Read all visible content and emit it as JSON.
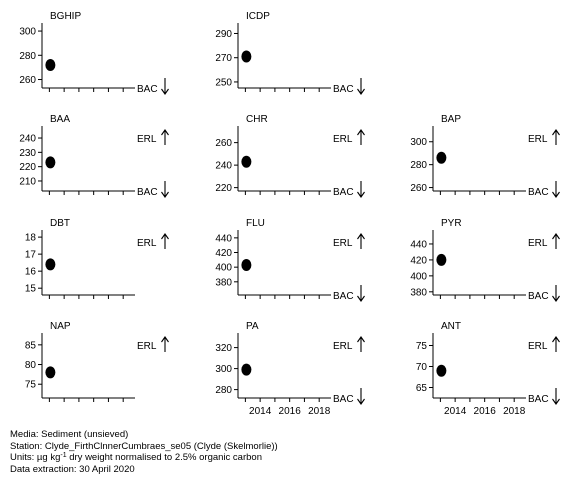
{
  "chart_data": [
    {
      "title": "BGHIP",
      "type": "scatter",
      "y_ticks": [
        "260",
        "280",
        "300"
      ],
      "ylim": [
        253,
        305
      ],
      "x": [
        2013
      ],
      "values": [
        272
      ],
      "has_erl": false,
      "has_bac": true,
      "x_ticks": []
    },
    {
      "title": "ICDP",
      "type": "scatter",
      "y_ticks": [
        "250",
        "270",
        "290"
      ],
      "ylim": [
        245,
        297
      ],
      "x": [
        2013
      ],
      "values": [
        271
      ],
      "has_erl": false,
      "has_bac": true,
      "x_ticks": []
    },
    {
      "title": "BAA",
      "type": "scatter",
      "y_ticks": [
        "210",
        "220",
        "230",
        "240"
      ],
      "ylim": [
        203,
        247
      ],
      "x": [
        2013
      ],
      "values": [
        223
      ],
      "has_erl": true,
      "has_bac": true,
      "x_ticks": []
    },
    {
      "title": "CHR",
      "type": "scatter",
      "y_ticks": [
        "220",
        "240",
        "260"
      ],
      "ylim": [
        217,
        273
      ],
      "x": [
        2013
      ],
      "values": [
        243
      ],
      "has_erl": true,
      "has_bac": true,
      "x_ticks": []
    },
    {
      "title": "BAP",
      "type": "scatter",
      "y_ticks": [
        "260",
        "280",
        "300"
      ],
      "ylim": [
        257,
        312
      ],
      "x": [
        2013
      ],
      "values": [
        286
      ],
      "has_erl": true,
      "has_bac": true,
      "x_ticks": []
    },
    {
      "title": "DBT",
      "type": "scatter",
      "y_ticks": [
        "15",
        "16",
        "17",
        "18"
      ],
      "ylim": [
        14.6,
        18.3
      ],
      "x": [
        2013
      ],
      "values": [
        16.4
      ],
      "has_erl": true,
      "has_bac": false,
      "x_ticks": []
    },
    {
      "title": "FLU",
      "type": "scatter",
      "y_ticks": [
        "380",
        "400",
        "420",
        "440"
      ],
      "ylim": [
        362,
        448
      ],
      "x": [
        2013
      ],
      "values": [
        403
      ],
      "has_erl": true,
      "has_bac": true,
      "x_ticks": []
    },
    {
      "title": "PYR",
      "type": "scatter",
      "y_ticks": [
        "380",
        "400",
        "420",
        "440"
      ],
      "ylim": [
        376,
        455
      ],
      "x": [
        2013
      ],
      "values": [
        420
      ],
      "has_erl": true,
      "has_bac": true,
      "x_ticks": []
    },
    {
      "title": "NAP",
      "type": "scatter",
      "y_ticks": [
        "75",
        "80",
        "85"
      ],
      "ylim": [
        71.5,
        87.5
      ],
      "x": [
        2013
      ],
      "values": [
        78
      ],
      "has_erl": true,
      "has_bac": false,
      "x_ticks": []
    },
    {
      "title": "PA",
      "type": "scatter",
      "y_ticks": [
        "280",
        "300",
        "320"
      ],
      "ylim": [
        272,
        332
      ],
      "x": [
        2013
      ],
      "values": [
        299
      ],
      "has_erl": true,
      "has_bac": true,
      "x_ticks": [
        "2014",
        "2016",
        "2018"
      ]
    },
    {
      "title": "ANT",
      "type": "scatter",
      "y_ticks": [
        "65",
        "70",
        "75"
      ],
      "ylim": [
        62.5,
        77.5
      ],
      "x": [
        2013
      ],
      "values": [
        69
      ],
      "has_erl": true,
      "has_bac": true,
      "x_ticks": [
        "2014",
        "2016",
        "2018"
      ]
    }
  ],
  "x_axis": {
    "range": [
      2012.5,
      2018.8
    ],
    "minor_ticks": [
      2013,
      2014,
      2015,
      2016,
      2017,
      2018
    ]
  },
  "labels": {
    "erl": "ERL",
    "bac": "BAC"
  },
  "footer": {
    "media": "Media: Sediment (unsieved)",
    "station": "Station: Clyde_FirthClnnerCumbraes_se05 (Clyde (Skelmorlie))",
    "units_prefix": "Units:  µg kg",
    "units_sup": "-1",
    "units_suffix": " dry weight normalised to 2.5% organic carbon",
    "extraction": "Data extraction: 30 April 2020"
  }
}
